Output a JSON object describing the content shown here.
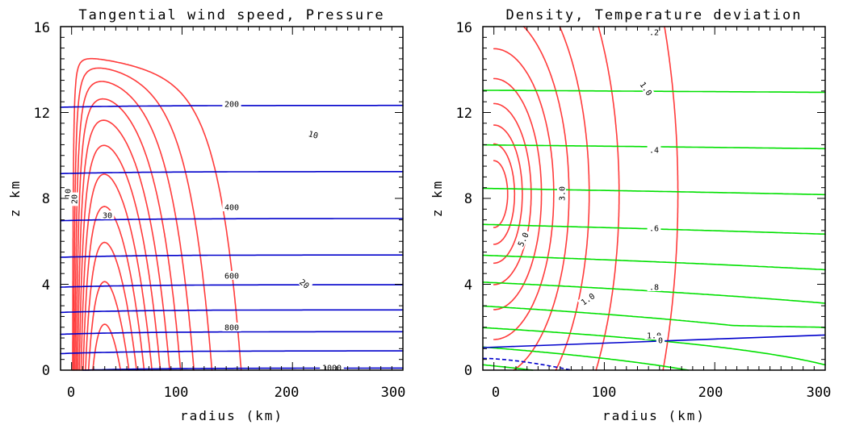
{
  "chart_data": [
    {
      "type": "contour",
      "title": "Tangential wind speed, Pressure",
      "xlabel": "radius (km)",
      "ylabel": "z km",
      "xlim": [
        -10,
        300
      ],
      "ylim": [
        0,
        16
      ],
      "x_ticks": [
        "0",
        "100",
        "200",
        "300"
      ],
      "y_ticks": [
        "0",
        "4",
        "8",
        "12",
        "16"
      ],
      "series": [
        {
          "color": "#ff3b3b",
          "levels": [
            5,
            10,
            15,
            20,
            25,
            30,
            35,
            40,
            45,
            50,
            55,
            60
          ],
          "labels": [
            "10",
            "20",
            "30",
            "10",
            "20"
          ]
        },
        {
          "color": "#0000cc",
          "levels": [
            1000,
            900,
            800,
            700,
            600,
            500,
            400,
            300,
            200
          ],
          "labels": [
            "200",
            "400",
            "600",
            "800",
            "1000"
          ]
        }
      ]
    },
    {
      "type": "contour",
      "title": "Density, Temperature deviation",
      "xlabel": "radius (km)",
      "ylabel": "z km",
      "xlim": [
        -10,
        300
      ],
      "ylim": [
        0,
        16
      ],
      "x_ticks": [
        "0",
        "100",
        "200",
        "300"
      ],
      "y_ticks": [
        "0",
        "4",
        "8",
        "12",
        "16"
      ],
      "series": [
        {
          "color": "#ff3b3b",
          "levels": [
            1,
            2,
            3,
            4,
            5,
            6,
            7,
            8,
            9,
            10
          ],
          "labels": [
            "1.0",
            "3.0",
            "5.0",
            "1.0"
          ]
        },
        {
          "color": "#00e000",
          "levels": [
            1.2,
            1.1,
            1.0,
            0.9,
            0.8,
            0.7,
            0.6,
            0.5,
            0.4,
            0.3,
            0.2
          ],
          "labels": [
            ".2",
            ".4",
            ".6",
            ".8",
            "1.0"
          ]
        },
        {
          "color": "#0000cc",
          "levels": [
            0,
            -1
          ],
          "labels": [
            "0"
          ]
        }
      ]
    }
  ]
}
